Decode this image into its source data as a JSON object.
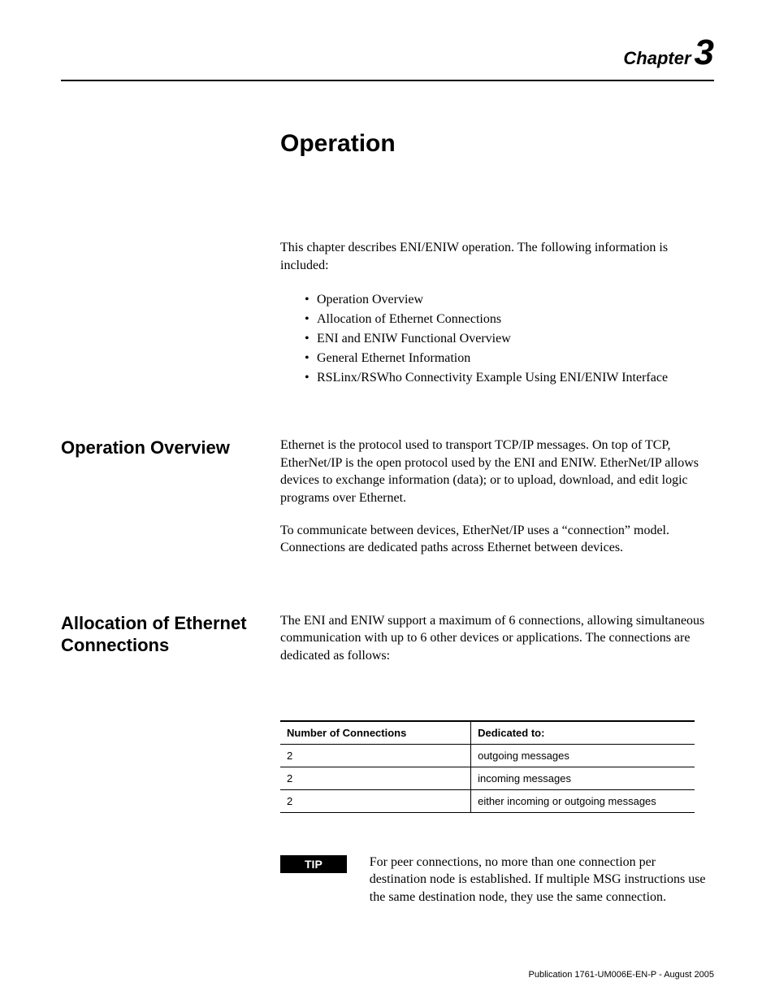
{
  "chapter": {
    "label": "Chapter",
    "number": "3"
  },
  "title": "Operation",
  "intro": "This chapter describes ENI/ENIW operation. The following information is included:",
  "bullets": [
    "Operation Overview",
    "Allocation of Ethernet Connections",
    "ENI and ENIW Functional Overview",
    "General Ethernet Information",
    "RSLinx/RSWho Connectivity Example Using ENI/ENIW Interface"
  ],
  "sections": {
    "overview": {
      "heading": "Operation Overview",
      "p1": "Ethernet is the protocol used to transport TCP/IP messages. On top of TCP, EtherNet/IP is the open protocol used by the ENI and ENIW. EtherNet/IP allows devices to exchange information (data); or to upload, download, and edit logic programs over Ethernet.",
      "p2": "To communicate between devices, EtherNet/IP uses a “connection” model. Connections are dedicated paths across Ethernet between devices."
    },
    "allocation": {
      "heading": "Allocation of Ethernet Connections",
      "p1": "The ENI and ENIW support a maximum of 6 connections, allowing simultaneous communication with up to 6 other devices or applications. The connections are dedicated as follows:"
    }
  },
  "table": {
    "headers": [
      "Number of Connections",
      "Dedicated to:"
    ],
    "rows": [
      [
        "2",
        "outgoing messages"
      ],
      [
        "2",
        "incoming messages"
      ],
      [
        "2",
        "either incoming or outgoing messages"
      ]
    ]
  },
  "tip": {
    "label": "TIP",
    "text": "For peer connections, no more than one connection per destination node is established. If multiple MSG instructions use the same destination node, they use the same connection."
  },
  "footer": "Publication 1761-UM006E-EN-P - August 2005"
}
